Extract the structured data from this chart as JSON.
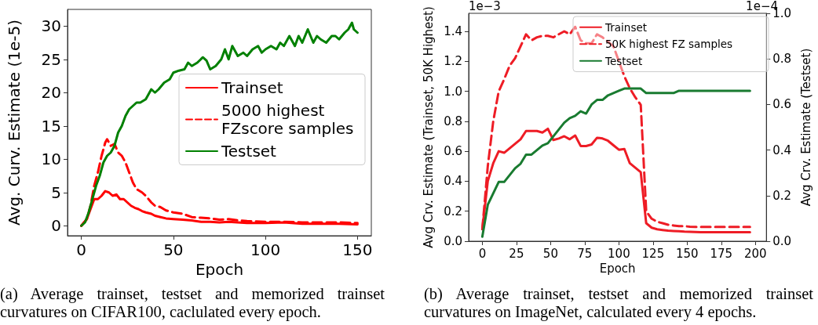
{
  "chart_data": [
    {
      "type": "line",
      "xlabel": "Epoch",
      "ylabel": "Avg. Curv. Estimate (1e-5)",
      "xlim": [
        -7.5,
        157.5
      ],
      "ylim": [
        -1.5,
        32.5
      ],
      "xticks": [
        0,
        50,
        100,
        150
      ],
      "yticks": [
        0,
        5,
        10,
        15,
        20,
        25,
        30
      ],
      "grid": false,
      "legend": "right",
      "marker": "none",
      "series": [
        {
          "name": "Trainset",
          "color": "#ff0000",
          "line_style": "solid",
          "x": [
            0,
            3,
            5,
            7,
            9,
            11,
            13,
            15,
            17,
            19,
            21,
            23,
            25,
            27,
            29,
            31,
            33,
            35,
            38,
            40,
            43,
            46,
            50,
            55,
            60,
            65,
            70,
            75,
            80,
            85,
            90,
            100,
            110,
            120,
            130,
            140,
            150
          ],
          "values": [
            0,
            1,
            2.5,
            4,
            4,
            4.5,
            5.2,
            5,
            4.5,
            4.7,
            4,
            4,
            3.5,
            3,
            2.7,
            2.5,
            2.2,
            2,
            1.8,
            1.5,
            1.3,
            1.1,
            1,
            0.9,
            0.8,
            0.6,
            0.6,
            0.5,
            0.6,
            0.5,
            0.4,
            0.4,
            0.5,
            0.3,
            0.3,
            0.3,
            0.2
          ]
        },
        {
          "name": "5000 highest FZscore samples",
          "color": "#ff0000",
          "line_style": "dashed",
          "x": [
            0,
            3,
            5,
            7,
            9,
            11,
            13,
            14,
            16,
            18,
            20,
            22,
            24,
            26,
            28,
            30,
            33,
            35,
            38,
            40,
            43,
            46,
            50,
            55,
            60,
            65,
            70,
            75,
            80,
            85,
            90,
            100,
            110,
            120,
            130,
            140,
            150
          ],
          "values": [
            0,
            1,
            3,
            6,
            8,
            10.5,
            12.5,
            13,
            12,
            12.3,
            11,
            10.5,
            9.5,
            8,
            6.5,
            5.5,
            5,
            4.5,
            3.5,
            3,
            2.8,
            2.3,
            2,
            1.8,
            1.3,
            1.2,
            1.1,
            0.9,
            1,
            0.8,
            0.7,
            0.6,
            0.6,
            0.5,
            0.5,
            0.5,
            0.4
          ]
        },
        {
          "name": "Testset",
          "color": "#008000",
          "line_style": "solid",
          "x": [
            0,
            2,
            4,
            6,
            8,
            10,
            12,
            14,
            16,
            18,
            20,
            22,
            24,
            26,
            28,
            30,
            32,
            35,
            38,
            40,
            42,
            45,
            48,
            50,
            53,
            56,
            58,
            60,
            63,
            66,
            68,
            70,
            73,
            76,
            78,
            80,
            82,
            85,
            88,
            90,
            93,
            96,
            98,
            100,
            103,
            106,
            108,
            110,
            113,
            116,
            118,
            120,
            123,
            126,
            128,
            130,
            133,
            136,
            138,
            140,
            143,
            145,
            147,
            148,
            150
          ],
          "values": [
            0,
            0.5,
            2,
            4,
            6,
            7.5,
            9.5,
            10.5,
            11,
            12,
            14,
            15,
            16.5,
            17.5,
            18,
            18.5,
            18.5,
            19,
            20.5,
            20,
            20.5,
            21.5,
            22,
            23,
            23.3,
            23.5,
            24.5,
            24,
            24.5,
            25.3,
            24.8,
            23.5,
            24,
            25,
            26.5,
            25,
            27,
            25.5,
            26,
            25.5,
            26.5,
            27,
            26,
            26.5,
            27,
            26.5,
            27.5,
            27,
            28.5,
            27,
            28.5,
            27.5,
            29.5,
            27.5,
            28.5,
            28,
            27.5,
            28.5,
            28.5,
            28,
            29,
            29.5,
            30.5,
            29.5,
            29
          ]
        }
      ],
      "annotations": [
        "(a) Average trainset, testset and memorized trainset curvatures on CIFAR100, caclulated every epoch."
      ]
    },
    {
      "type": "line",
      "xlabel": "Epoch",
      "ylabel": "Avg Crv. Estimate (Trainset, 50K Highest)",
      "y2label": "Avg Crv. Estimate (Testset)",
      "xlim": [
        -10,
        208
      ],
      "ylim": [
        0,
        1.52
      ],
      "y2lim": [
        0,
        1.0
      ],
      "xticks": [
        0,
        25,
        50,
        75,
        100,
        125,
        150,
        175,
        200
      ],
      "yticks": [
        {
          "value": 0,
          "label": "0.0"
        },
        0.2,
        0.4,
        0.6,
        0.8,
        {
          "value": 1,
          "label": "1.0"
        },
        1.2,
        1.4
      ],
      "y2ticks": [
        {
          "value": 0,
          "label": "0.0"
        },
        0.2,
        0.4,
        0.6,
        0.8,
        {
          "value": 1,
          "label": "1.0"
        }
      ],
      "grid": false,
      "legend": "top right",
      "marker": "none",
      "x": [
        0,
        4,
        8,
        12,
        16,
        20,
        24,
        28,
        32,
        36,
        40,
        44,
        48,
        52,
        56,
        60,
        64,
        68,
        72,
        76,
        80,
        84,
        88,
        92,
        96,
        100,
        104,
        108,
        112,
        116,
        120,
        124,
        128,
        132,
        136,
        140,
        144,
        148,
        152,
        156,
        160,
        164,
        168,
        172,
        176,
        180,
        184,
        188,
        192,
        196
      ],
      "series": [
        {
          "name": "Trainset",
          "color": "#ee1c25",
          "line_style": "solid",
          "values": [
            0.08,
            0.4,
            0.52,
            0.6,
            0.59,
            0.62,
            0.65,
            0.68,
            0.735,
            0.735,
            0.735,
            0.725,
            0.75,
            0.675,
            0.685,
            0.7,
            0.68,
            0.705,
            0.635,
            0.635,
            0.645,
            0.69,
            0.685,
            0.67,
            0.64,
            0.61,
            0.615,
            0.52,
            0.49,
            0.46,
            0.12,
            0.09,
            0.08,
            0.075,
            0.07,
            0.068,
            0.066,
            0.064,
            0.063,
            0.062,
            0.06,
            0.06,
            0.06,
            0.06,
            0.06,
            0.06,
            0.06,
            0.06,
            0.06,
            0.06
          ]
        },
        {
          "name": "50K highest FZ samples",
          "color": "#ee1c25",
          "line_style": "dashed",
          "values": [
            0.08,
            0.5,
            0.8,
            1.0,
            1.08,
            1.17,
            1.22,
            1.3,
            1.38,
            1.34,
            1.36,
            1.37,
            1.37,
            1.36,
            1.38,
            1.4,
            1.38,
            1.43,
            1.34,
            1.32,
            1.32,
            1.38,
            1.36,
            1.33,
            1.3,
            1.2,
            1.1,
            1.02,
            0.96,
            0.91,
            0.2,
            0.15,
            0.13,
            0.12,
            0.11,
            0.105,
            0.1,
            0.1,
            0.097,
            0.095,
            0.095,
            0.095,
            0.095,
            0.095,
            0.095,
            0.095,
            0.095,
            0.095,
            0.095,
            0.095
          ]
        },
        {
          "name": "Testset",
          "color": "#197b30",
          "line_style": "solid",
          "axis": "y2",
          "values": [
            0.02,
            0.16,
            0.21,
            0.26,
            0.26,
            0.29,
            0.32,
            0.34,
            0.38,
            0.38,
            0.4,
            0.42,
            0.43,
            0.46,
            0.49,
            0.52,
            0.54,
            0.55,
            0.57,
            0.56,
            0.6,
            0.62,
            0.62,
            0.64,
            0.65,
            0.66,
            0.67,
            0.67,
            0.67,
            0.67,
            0.65,
            0.65,
            0.65,
            0.65,
            0.65,
            0.65,
            0.66,
            0.66,
            0.66,
            0.66,
            0.66,
            0.66,
            0.66,
            0.66,
            0.66,
            0.66,
            0.66,
            0.66,
            0.66,
            0.66
          ]
        }
      ],
      "annotations": [
        "1e−3",
        "1e−4",
        "(b) Average trainset, testset and memorized trainset curvatures on ImageNet, calculated every 4 epochs."
      ]
    }
  ]
}
